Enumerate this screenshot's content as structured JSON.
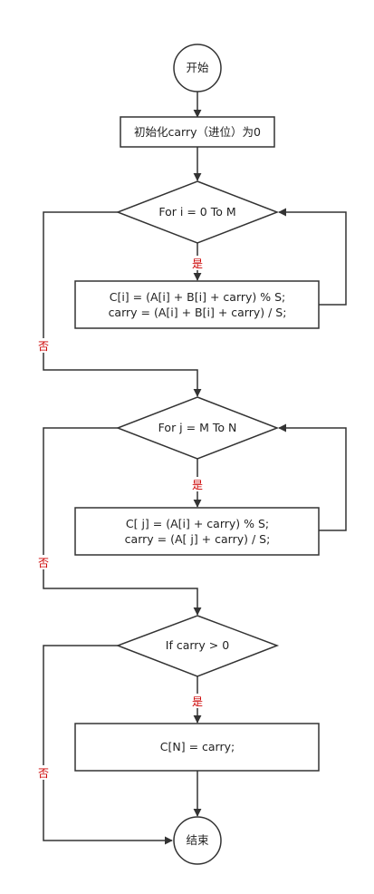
{
  "nodes": {
    "start": "开始",
    "init": "初始化carry（进位）为0",
    "loop1": "For i = 0 To M",
    "body1_line1": "C[i] = (A[i] + B[i] + carry) % S;",
    "body1_line2": "carry = (A[i] + B[i] + carry) / S;",
    "loop2": "For j = M To N",
    "body2_line1": "C[ j] = (A[i] + carry) % S;",
    "body2_line2": "carry = (A[ j] + carry) / S;",
    "cond": "If carry > 0",
    "body3": "C[N] = carry;",
    "end": "结束"
  },
  "labels": {
    "yes": "是",
    "no": "否"
  },
  "colors": {
    "stroke": "#333333",
    "branch_label": "#cc0000"
  }
}
